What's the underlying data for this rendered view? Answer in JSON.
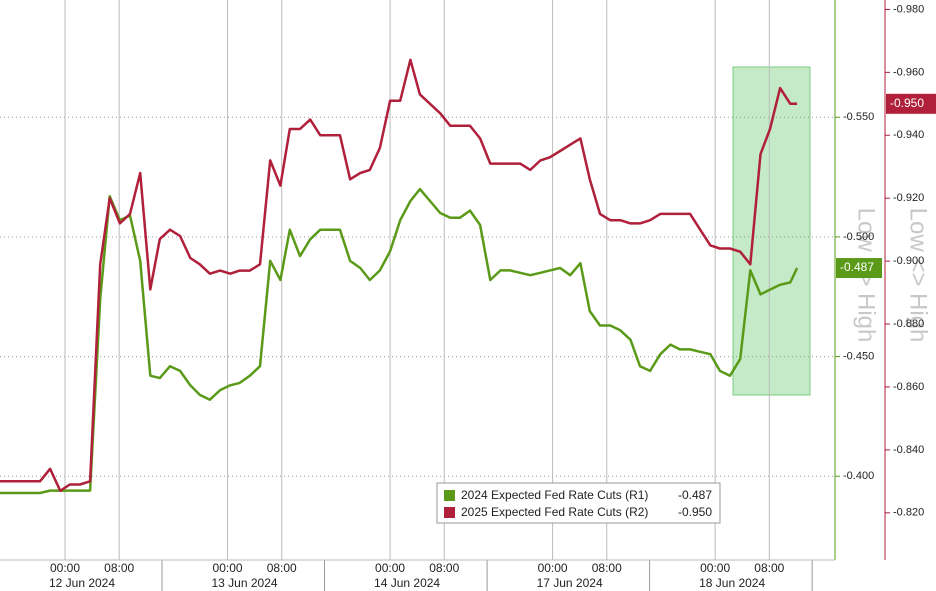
{
  "chart_data": {
    "type": "line",
    "y_label": "Low <> High",
    "y2_label": "Low <> High",
    "xlim": [
      -9.6,
      113.7
    ],
    "xticks": [
      {
        "value": 0,
        "label": "00:00"
      },
      {
        "value": 8,
        "label": "08:00"
      },
      {
        "value": 24,
        "label": "00:00"
      },
      {
        "value": 32,
        "label": "08:00"
      },
      {
        "value": 48,
        "label": "00:00"
      },
      {
        "value": 56,
        "label": "08:00"
      },
      {
        "value": 72,
        "label": "00:00"
      },
      {
        "value": 80,
        "label": "08:00"
      },
      {
        "value": 96,
        "label": "00:00"
      },
      {
        "value": 104,
        "label": "08:00"
      }
    ],
    "day_labels": [
      {
        "value": 0,
        "label": "12 Jun 2024"
      },
      {
        "value": 24,
        "label": "13 Jun 2024"
      },
      {
        "value": 48,
        "label": "14 Jun 2024"
      },
      {
        "value": 72,
        "label": "17 Jun 2024"
      },
      {
        "value": 96,
        "label": "18 Jun 2024"
      }
    ],
    "ylim": [
      -0.365,
      -0.599
    ],
    "yticks": [
      {
        "value": -0.55,
        "label": "-0.550"
      },
      {
        "value": -0.5,
        "label": "-0.500"
      },
      {
        "value": -0.45,
        "label": "-0.450"
      },
      {
        "value": -0.4,
        "label": "-0.400"
      }
    ],
    "y2lim": [
      -0.805,
      -0.983
    ],
    "y2ticks": [
      {
        "value": -0.98,
        "label": "-0.980"
      },
      {
        "value": -0.96,
        "label": "-0.960"
      },
      {
        "value": -0.94,
        "label": "-0.940"
      },
      {
        "value": -0.92,
        "label": "-0.920"
      },
      {
        "value": -0.9,
        "label": "-0.900"
      },
      {
        "value": -0.88,
        "label": "-0.880"
      },
      {
        "value": -0.86,
        "label": "-0.860"
      },
      {
        "value": -0.84,
        "label": "-0.840"
      },
      {
        "value": -0.82,
        "label": "-0.820"
      }
    ],
    "grid": true,
    "x": [
      -9.6,
      -8.1,
      -6.6,
      -5.2,
      -3.7,
      -2.2,
      -0.7,
      0.7,
      2.2,
      3.7,
      5.2,
      6.6,
      8.1,
      9.6,
      11.1,
      12.6,
      14.0,
      15.5,
      17.0,
      18.5,
      19.9,
      21.4,
      22.9,
      24.4,
      25.8,
      27.3,
      28.8,
      30.3,
      31.8,
      33.2,
      34.7,
      36.2,
      37.7,
      39.1,
      40.6,
      42.1,
      43.6,
      45.0,
      46.5,
      48.0,
      49.5,
      51.0,
      52.4,
      53.9,
      55.4,
      56.9,
      58.3,
      59.8,
      61.3,
      62.8,
      64.3,
      65.7,
      67.2,
      68.7,
      70.2,
      71.6,
      73.1,
      74.6,
      76.1,
      77.5,
      79.0,
      80.5,
      82.0,
      83.5,
      84.9,
      86.4,
      87.9,
      89.4,
      90.8,
      92.3,
      93.8,
      95.3,
      96.7,
      98.2,
      99.7,
      101.2,
      102.7,
      104.1,
      105.6,
      107.1,
      108.1
    ],
    "series": [
      {
        "name": "2024 Expected Fed Rate Cuts (R1)",
        "color": "#5a9a18",
        "axis": "y",
        "last_value": -0.487,
        "last_label": "-0.487",
        "values": [
          -0.393,
          -0.393,
          -0.393,
          -0.393,
          -0.393,
          -0.394,
          -0.394,
          -0.394,
          -0.394,
          -0.394,
          -0.474,
          -0.517,
          -0.507,
          -0.509,
          -0.49,
          -0.442,
          -0.441,
          -0.446,
          -0.444,
          -0.438,
          -0.434,
          -0.432,
          -0.436,
          -0.438,
          -0.439,
          -0.442,
          -0.446,
          -0.49,
          -0.482,
          -0.503,
          -0.492,
          -0.499,
          -0.503,
          -0.503,
          -0.503,
          -0.49,
          -0.487,
          -0.482,
          -0.486,
          -0.494,
          -0.507,
          -0.515,
          -0.52,
          -0.515,
          -0.51,
          -0.508,
          -0.508,
          -0.511,
          -0.505,
          -0.482,
          -0.486,
          -0.486,
          -0.485,
          -0.484,
          -0.485,
          -0.486,
          -0.487,
          -0.484,
          -0.489,
          -0.469,
          -0.463,
          -0.463,
          -0.461,
          -0.457,
          -0.446,
          -0.444,
          -0.451,
          -0.455,
          -0.453,
          -0.453,
          -0.452,
          -0.451,
          -0.444,
          -0.442,
          -0.449,
          -0.486,
          -0.476,
          -0.478,
          -0.48,
          -0.481,
          -0.487
        ]
      },
      {
        "name": "2025 Expected Fed Rate Cuts (R2)",
        "color": "#b0203a",
        "axis": "y2",
        "last_value": -0.95,
        "last_label": "-0.950",
        "values": [
          -0.83,
          -0.83,
          -0.83,
          -0.83,
          -0.83,
          -0.834,
          -0.827,
          -0.829,
          -0.829,
          -0.83,
          -0.899,
          -0.92,
          -0.912,
          -0.915,
          -0.928,
          -0.891,
          -0.907,
          -0.91,
          -0.908,
          -0.901,
          -0.899,
          -0.896,
          -0.897,
          -0.896,
          -0.897,
          -0.897,
          -0.899,
          -0.932,
          -0.924,
          -0.942,
          -0.942,
          -0.945,
          -0.94,
          -0.94,
          -0.94,
          -0.926,
          -0.928,
          -0.929,
          -0.936,
          -0.951,
          -0.951,
          -0.964,
          -0.953,
          -0.95,
          -0.947,
          -0.943,
          -0.943,
          -0.943,
          -0.939,
          -0.931,
          -0.931,
          -0.931,
          -0.931,
          -0.929,
          -0.932,
          -0.933,
          -0.935,
          -0.937,
          -0.939,
          -0.926,
          -0.915,
          -0.913,
          -0.913,
          -0.912,
          -0.912,
          -0.913,
          -0.915,
          -0.915,
          -0.915,
          -0.915,
          -0.91,
          -0.905,
          -0.904,
          -0.904,
          -0.903,
          -0.899,
          -0.934,
          -0.942,
          -0.955,
          -0.95,
          -0.95
        ]
      }
    ]
  }
}
